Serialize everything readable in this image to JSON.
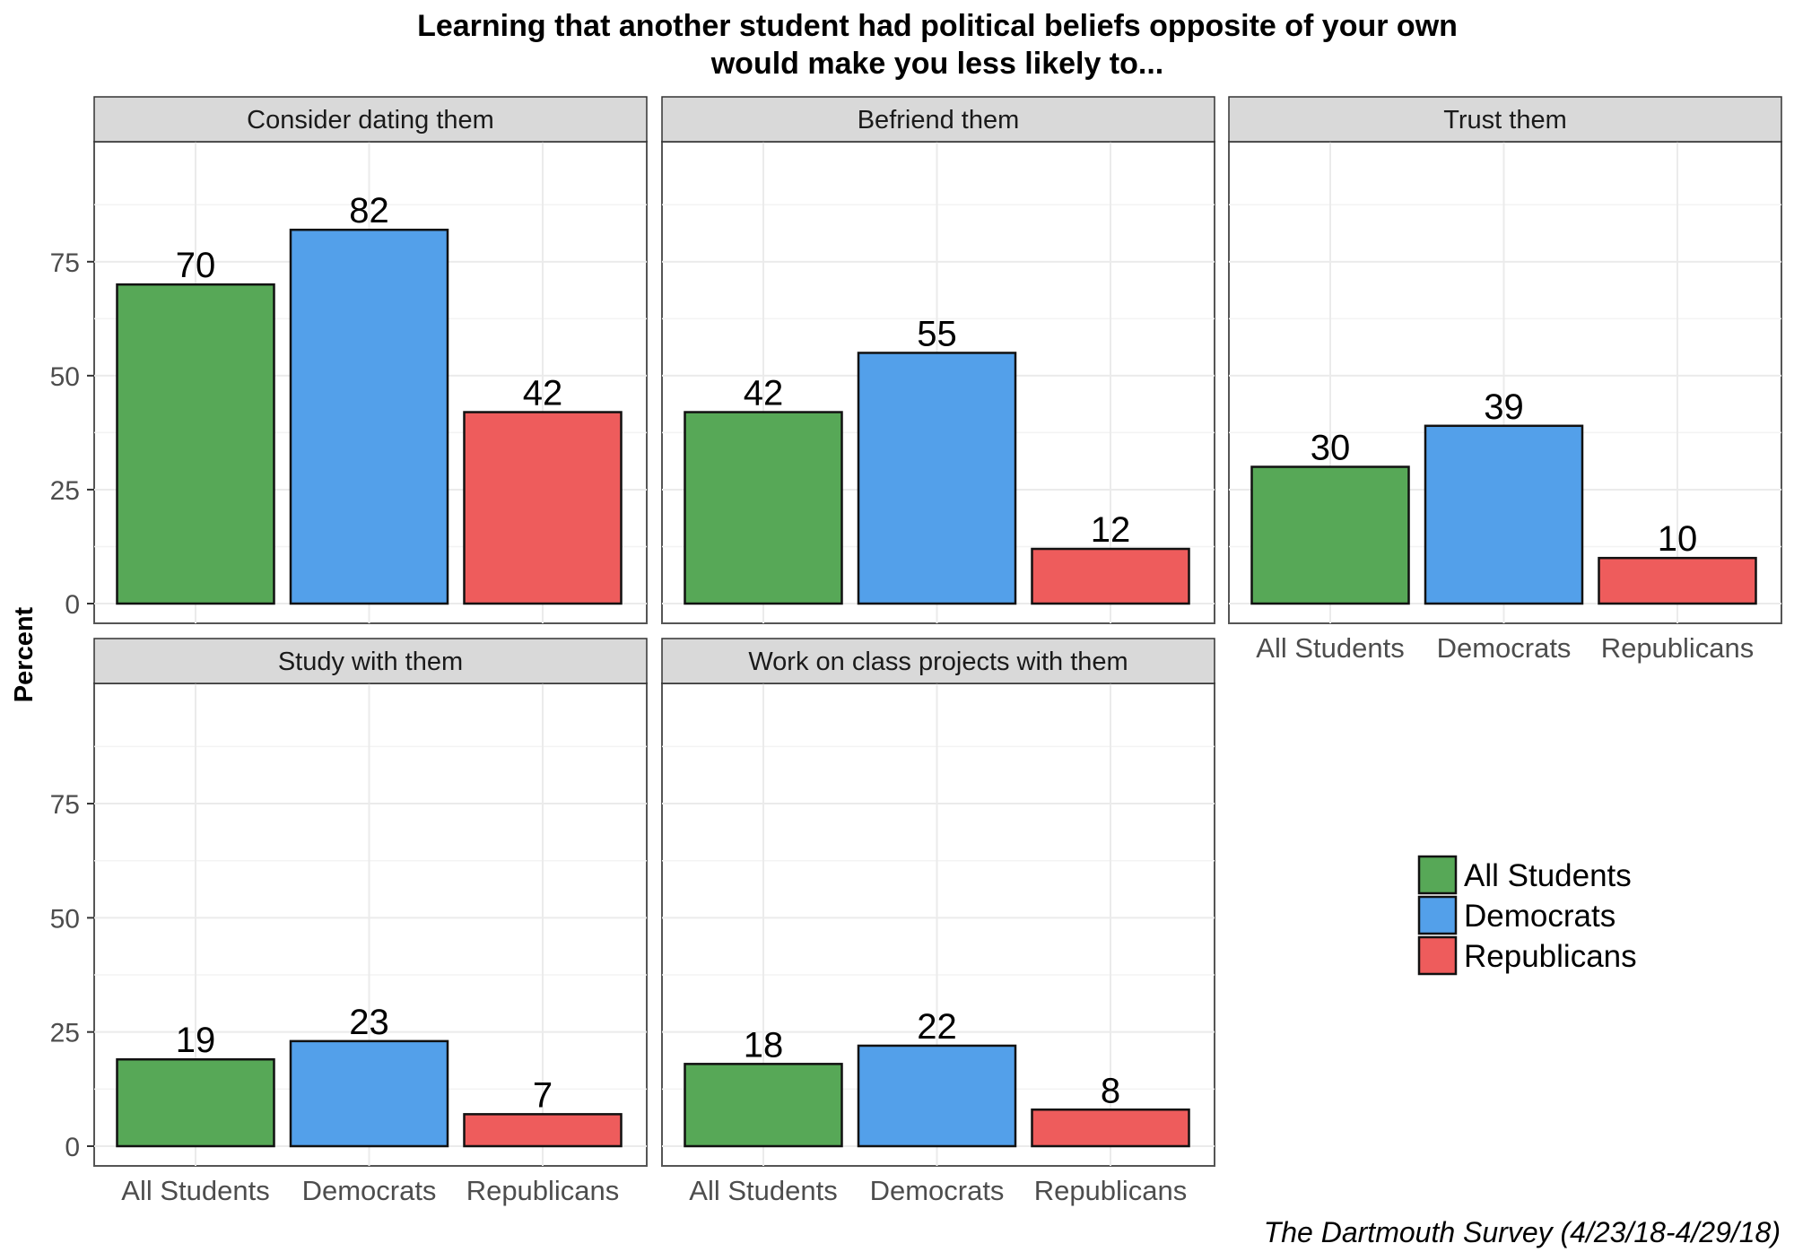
{
  "chart_data": {
    "type": "bar",
    "title": [
      "Learning that another student had political beliefs opposite of your own",
      "would make you less likely to..."
    ],
    "ylabel": "Percent",
    "xlabel": "",
    "ylim": [
      0,
      97
    ],
    "yticks": [
      "0",
      "25",
      "50",
      "75"
    ],
    "categories": [
      "All Students",
      "Democrats",
      "Republicans"
    ],
    "colors": [
      "#57a857",
      "#53a0ea",
      "#ee5c5c"
    ],
    "legend": {
      "position": "right",
      "entries": [
        "All Students",
        "Democrats",
        "Republicans"
      ]
    },
    "facets": [
      {
        "title": "Consider dating them",
        "values": [
          70,
          82,
          42
        ]
      },
      {
        "title": "Befriend them",
        "values": [
          42,
          55,
          12
        ]
      },
      {
        "title": "Trust them",
        "values": [
          30,
          39,
          10
        ]
      },
      {
        "title": "Study with them",
        "values": [
          19,
          23,
          7
        ]
      },
      {
        "title": "Work on class projects with them",
        "values": [
          18,
          22,
          8
        ]
      }
    ],
    "caption": "The Dartmouth Survey (4/23/18-4/29/18)",
    "grid": true
  }
}
